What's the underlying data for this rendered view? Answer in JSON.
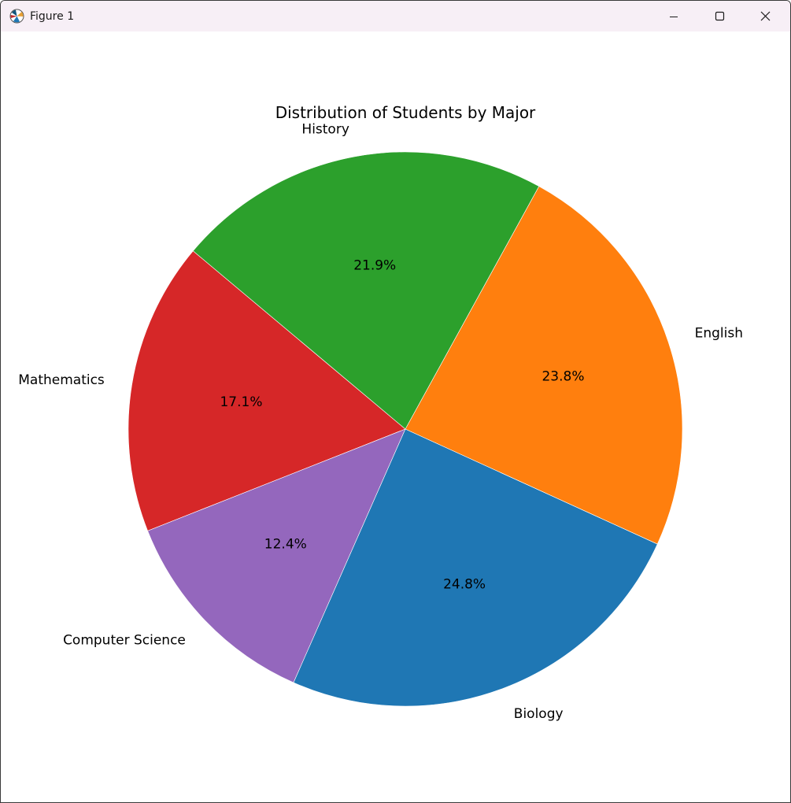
{
  "window": {
    "title": "Figure 1",
    "icons": {
      "app": "matplotlib-figure-icon",
      "minimize": "minimize-icon",
      "maximize": "maximize-icon",
      "close": "close-icon"
    }
  },
  "chart_data": {
    "type": "pie",
    "title": "Distribution of Students by Major",
    "start_angle_deg": 140,
    "direction": "counterclockwise",
    "slices": [
      {
        "label": "Mathematics",
        "value": 17.1,
        "pct_label": "17.1%",
        "color": "#d62728"
      },
      {
        "label": "Computer Science",
        "value": 12.4,
        "pct_label": "12.4%",
        "color": "#9467bd"
      },
      {
        "label": "Biology",
        "value": 24.8,
        "pct_label": "24.8%",
        "color": "#1f77b4"
      },
      {
        "label": "English",
        "value": 23.8,
        "pct_label": "23.8%",
        "color": "#ff7f0e"
      },
      {
        "label": "History",
        "value": 21.9,
        "pct_label": "21.9%",
        "color": "#2ca02c"
      }
    ],
    "edge_color": "#ffffff"
  }
}
